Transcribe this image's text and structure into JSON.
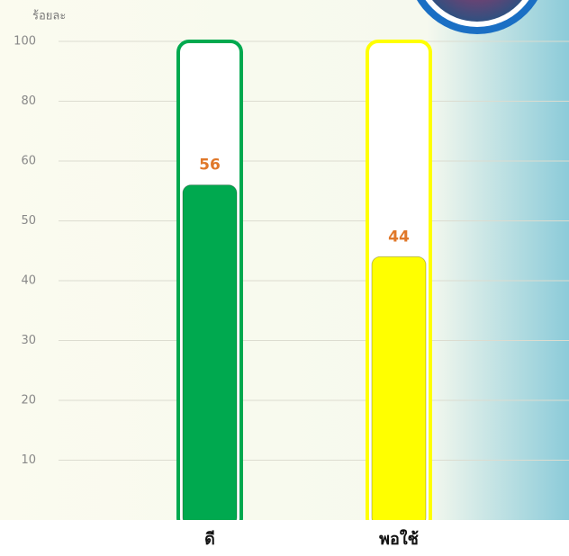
{
  "chart_data": {
    "type": "bar",
    "y_axis_label": "ร้อยละ",
    "categories": [
      "ดี",
      "พอใช้"
    ],
    "values": [
      56,
      44
    ],
    "colors": [
      "#00a94f",
      "#ffff00"
    ],
    "value_label_color": "#e0782a",
    "ylim": [
      0,
      100
    ],
    "yticks": [
      10,
      20,
      30,
      40,
      50,
      60,
      80,
      100
    ],
    "grid": true
  }
}
